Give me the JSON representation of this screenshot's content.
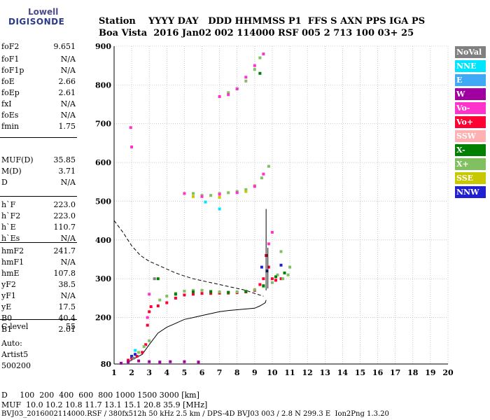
{
  "logo": {
    "line1": "Lowell",
    "line2": "DIGISONDE"
  },
  "header": {
    "line1": "Station    YYYY DAY   DDD HHMMSS P1  FFS S AXN PPS IGA PS",
    "line2": "Boa Vista  2016 Jan02 002 114000 RSF 005 2 713 100 03+ 25"
  },
  "params": [
    {
      "name": "foF2",
      "value": "9.651"
    },
    {
      "name": "foF1",
      "value": "N/A"
    },
    {
      "name": "foF1p",
      "value": "N/A"
    },
    {
      "name": "foE",
      "value": "2.66"
    },
    {
      "name": "foEp",
      "value": "2.61"
    },
    {
      "name": "fxI",
      "value": "N/A"
    },
    {
      "name": "foEs",
      "value": "N/A"
    },
    {
      "name": "fmin",
      "value": "1.75"
    },
    {
      "name": "MUF(D)",
      "value": "35.85"
    },
    {
      "name": "M(D)",
      "value": "3.71"
    },
    {
      "name": "D",
      "value": "N/A"
    },
    {
      "name": "h`F",
      "value": "223.0"
    },
    {
      "name": "h`F2",
      "value": "223.0"
    },
    {
      "name": "h`E",
      "value": "110.7"
    },
    {
      "name": "h`Es",
      "value": "N/A"
    },
    {
      "name": "hmF2",
      "value": "241.7"
    },
    {
      "name": "hmF1",
      "value": "N/A"
    },
    {
      "name": "hmE",
      "value": "107.8"
    },
    {
      "name": "yF2",
      "value": "38.5"
    },
    {
      "name": "yF1",
      "value": "N/A"
    },
    {
      "name": "yE",
      "value": "17.5"
    },
    {
      "name": "B0",
      "value": "40.4"
    },
    {
      "name": "B1",
      "value": "2.01"
    },
    {
      "name": "C-level",
      "value": "55"
    }
  ],
  "auto": {
    "line1": "Auto:",
    "line2": "Artist5",
    "line3": "500200"
  },
  "footer": {
    "d_row": "D     100  200  400  600  800 1000 1500 3000 [km]",
    "muf_row": "MUF  10.0 10.2 10.8 11.7 13.1 15.1 20.8 35.9 [MHz]",
    "file_row": "BVJ03_2016002114000.RSF / 380fx512h 50 kHz 2.5 km / DPS-4D BVJ03 003 / 2.8 N 299.3 E  Ion2Png 1.3.20"
  },
  "legend": [
    {
      "label": "NoVal",
      "color": "#808080"
    },
    {
      "label": "NNE",
      "color": "#00e5ff"
    },
    {
      "label": "E",
      "color": "#3fa9f5"
    },
    {
      "label": "W",
      "color": "#a000a0"
    },
    {
      "label": "Vo-",
      "color": "#ff33cc"
    },
    {
      "label": "Vo+",
      "color": "#ff0033"
    },
    {
      "label": "SSW",
      "color": "#ffb0b0"
    },
    {
      "label": "X-",
      "color": "#008000"
    },
    {
      "label": "X+",
      "color": "#80c060"
    },
    {
      "label": "SSE",
      "color": "#c8c800"
    },
    {
      "label": "NNW",
      "color": "#2020d0"
    }
  ],
  "chart_data": {
    "type": "scatter",
    "xlim": [
      1,
      20
    ],
    "ylim": [
      80,
      900
    ],
    "x_ticks": [
      1,
      2,
      3,
      4,
      5,
      6,
      7,
      8,
      9,
      10,
      11,
      12,
      13,
      14,
      15,
      16,
      17,
      18,
      19,
      20
    ],
    "y_ticks": [
      80,
      200,
      300,
      400,
      500,
      600,
      700,
      800,
      900
    ],
    "grid": true,
    "legend_position": "right",
    "clusters": [
      {
        "name": "Vo+",
        "color": "#ff0033",
        "points": [
          [
            3.1,
            228
          ],
          [
            3.5,
            230
          ],
          [
            4.0,
            238
          ],
          [
            4.5,
            250
          ],
          [
            5.0,
            258
          ],
          [
            5.5,
            260
          ],
          [
            6.0,
            262
          ],
          [
            6.5,
            262
          ],
          [
            7.0,
            263
          ],
          [
            7.5,
            263
          ],
          [
            8.0,
            264
          ],
          [
            8.5,
            266
          ],
          [
            9.0,
            270
          ],
          [
            9.3,
            285
          ],
          [
            9.5,
            300
          ],
          [
            9.65,
            360
          ],
          [
            9.8,
            330
          ],
          [
            10.0,
            300
          ],
          [
            10.2,
            296
          ],
          [
            10.5,
            300
          ],
          [
            2.0,
            95
          ],
          [
            2.3,
            100
          ],
          [
            2.6,
            110
          ],
          [
            2.8,
            130
          ],
          [
            2.9,
            180
          ],
          [
            3.0,
            215
          ],
          [
            1.8,
            90
          ]
        ]
      },
      {
        "name": "X+",
        "color": "#80c060",
        "points": [
          [
            3.6,
            245
          ],
          [
            4.0,
            255
          ],
          [
            4.5,
            262
          ],
          [
            5.0,
            268
          ],
          [
            5.5,
            270
          ],
          [
            6.0,
            270
          ],
          [
            6.5,
            268
          ],
          [
            7.0,
            266
          ],
          [
            7.5,
            265
          ],
          [
            8.0,
            266
          ],
          [
            8.5,
            268
          ],
          [
            9.0,
            272
          ],
          [
            9.5,
            280
          ],
          [
            10.0,
            290
          ],
          [
            10.3,
            310
          ],
          [
            10.6,
            300
          ],
          [
            10.9,
            310
          ],
          [
            11.0,
            330
          ],
          [
            10.5,
            370
          ],
          [
            2.4,
            110
          ],
          [
            2.7,
            125
          ],
          [
            3.0,
            140
          ],
          [
            5.5,
            520
          ],
          [
            6.0,
            515
          ],
          [
            6.5,
            515
          ],
          [
            7.0,
            520
          ],
          [
            7.5,
            522
          ],
          [
            8.0,
            525
          ],
          [
            8.5,
            530
          ],
          [
            9.0,
            540
          ],
          [
            9.4,
            560
          ],
          [
            9.8,
            590
          ],
          [
            7.5,
            780
          ],
          [
            8.0,
            790
          ],
          [
            8.5,
            810
          ],
          [
            9.0,
            840
          ],
          [
            9.3,
            870
          ]
        ]
      },
      {
        "name": "X-",
        "color": "#008000",
        "points": [
          [
            4.5,
            260
          ],
          [
            5.5,
            266
          ],
          [
            6.5,
            266
          ],
          [
            7.5,
            265
          ],
          [
            8.5,
            267
          ],
          [
            9.5,
            282
          ],
          [
            10.2,
            305
          ],
          [
            10.7,
            315
          ],
          [
            3.5,
            300
          ],
          [
            9.3,
            830
          ]
        ]
      },
      {
        "name": "Vo-",
        "color": "#ff33cc",
        "points": [
          [
            1.95,
            690
          ],
          [
            2.0,
            640
          ],
          [
            5.0,
            520
          ],
          [
            6.0,
            512
          ],
          [
            7.0,
            518
          ],
          [
            8.0,
            522
          ],
          [
            9.0,
            538
          ],
          [
            9.5,
            570
          ],
          [
            7.0,
            770
          ],
          [
            7.5,
            775
          ],
          [
            8.0,
            790
          ],
          [
            8.5,
            820
          ],
          [
            9.0,
            850
          ],
          [
            9.5,
            880
          ],
          [
            9.8,
            390
          ],
          [
            10.0,
            420
          ],
          [
            3.0,
            260
          ],
          [
            2.9,
            200
          ]
        ]
      },
      {
        "name": "NNW",
        "color": "#2020d0",
        "points": [
          [
            9.4,
            330
          ],
          [
            9.7,
            320
          ],
          [
            10.5,
            335
          ],
          [
            2.0,
            100
          ],
          [
            2.2,
            105
          ]
        ]
      },
      {
        "name": "NNE",
        "color": "#00e5ff",
        "points": [
          [
            7.0,
            480
          ],
          [
            6.2,
            498
          ],
          [
            2.2,
            115
          ]
        ]
      },
      {
        "name": "W",
        "color": "#a000a0",
        "points": [
          [
            1.4,
            82
          ],
          [
            1.8,
            85
          ],
          [
            2.4,
            88
          ],
          [
            3.0,
            86
          ],
          [
            3.6,
            85
          ],
          [
            4.2,
            86
          ],
          [
            5.0,
            86
          ],
          [
            5.8,
            85
          ]
        ]
      },
      {
        "name": "SSE",
        "color": "#c8c800",
        "points": [
          [
            5.5,
            512
          ],
          [
            7.0,
            510
          ],
          [
            8.5,
            525
          ]
        ]
      },
      {
        "name": "NoVal",
        "color": "#808080",
        "points": [
          [
            3.3,
            300
          ],
          [
            2.1,
            95
          ]
        ]
      }
    ],
    "profile_solid": [
      [
        1.8,
        85
      ],
      [
        2.2,
        95
      ],
      [
        2.6,
        105
      ],
      [
        3.0,
        130
      ],
      [
        3.5,
        160
      ],
      [
        4.0,
        175
      ],
      [
        4.5,
        185
      ],
      [
        5.0,
        195
      ],
      [
        5.5,
        200
      ],
      [
        6.0,
        205
      ],
      [
        6.5,
        210
      ],
      [
        7.0,
        215
      ],
      [
        7.5,
        218
      ],
      [
        8.0,
        220
      ],
      [
        8.5,
        222
      ],
      [
        9.0,
        224
      ],
      [
        9.3,
        230
      ],
      [
        9.6,
        238
      ],
      [
        9.65,
        245
      ]
    ],
    "profile_dashed": [
      [
        1.0,
        450
      ],
      [
        1.5,
        420
      ],
      [
        2.0,
        385
      ],
      [
        2.5,
        360
      ],
      [
        3.0,
        345
      ],
      [
        3.5,
        335
      ],
      [
        4.0,
        325
      ],
      [
        4.5,
        315
      ],
      [
        5.0,
        307
      ],
      [
        5.5,
        300
      ],
      [
        6.0,
        295
      ],
      [
        6.5,
        290
      ],
      [
        7.0,
        285
      ],
      [
        7.5,
        280
      ],
      [
        8.0,
        275
      ],
      [
        8.5,
        270
      ],
      [
        9.0,
        262
      ],
      [
        9.5,
        255
      ]
    ],
    "spikes": [
      [
        9.65,
        270,
        480
      ],
      [
        9.75,
        275,
        380
      ]
    ]
  }
}
